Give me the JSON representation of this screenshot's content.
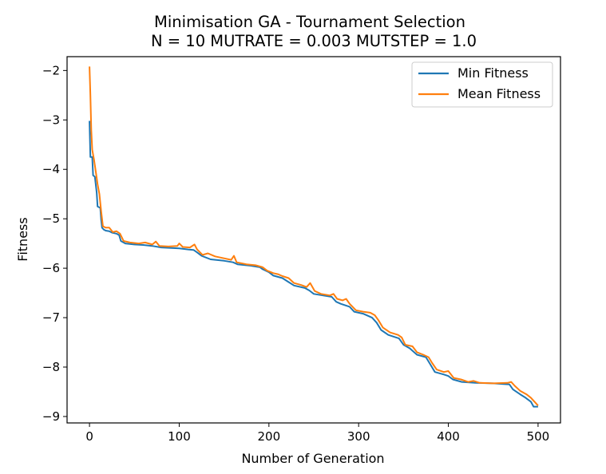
{
  "chart_data": {
    "type": "line",
    "title": "Minimisation GA - Tournament Selection",
    "subtitle": "N = 10 MUTRATE = 0.003 MUTSTEP = 1.0",
    "xlabel": "Number of Generation",
    "ylabel": "Fitness",
    "xlim": [
      -25,
      525
    ],
    "ylim": [
      -9.13,
      -1.72
    ],
    "xticks": [
      0,
      100,
      200,
      300,
      400,
      500
    ],
    "yticks": [
      -9,
      -8,
      -7,
      -6,
      -5,
      -4,
      -3,
      -2
    ],
    "legend": "top-right",
    "grid": false,
    "series": [
      {
        "name": "Min Fitness",
        "color": "#1f77b4",
        "points": [
          [
            0,
            -3.02
          ],
          [
            1,
            -3.75
          ],
          [
            3,
            -3.75
          ],
          [
            4,
            -4.12
          ],
          [
            6,
            -4.15
          ],
          [
            8,
            -4.47
          ],
          [
            9,
            -4.75
          ],
          [
            12,
            -4.78
          ],
          [
            13,
            -5.02
          ],
          [
            14,
            -5.18
          ],
          [
            16,
            -5.22
          ],
          [
            18,
            -5.24
          ],
          [
            22,
            -5.25
          ],
          [
            25,
            -5.28
          ],
          [
            30,
            -5.3
          ],
          [
            33,
            -5.33
          ],
          [
            35,
            -5.45
          ],
          [
            40,
            -5.5
          ],
          [
            50,
            -5.52
          ],
          [
            60,
            -5.53
          ],
          [
            70,
            -5.55
          ],
          [
            80,
            -5.58
          ],
          [
            100,
            -5.6
          ],
          [
            110,
            -5.62
          ],
          [
            116,
            -5.63
          ],
          [
            120,
            -5.68
          ],
          [
            125,
            -5.75
          ],
          [
            135,
            -5.82
          ],
          [
            150,
            -5.85
          ],
          [
            160,
            -5.88
          ],
          [
            165,
            -5.92
          ],
          [
            180,
            -5.95
          ],
          [
            190,
            -5.98
          ],
          [
            193,
            -6.02
          ],
          [
            200,
            -6.08
          ],
          [
            205,
            -6.15
          ],
          [
            215,
            -6.2
          ],
          [
            222,
            -6.28
          ],
          [
            228,
            -6.35
          ],
          [
            240,
            -6.4
          ],
          [
            245,
            -6.45
          ],
          [
            250,
            -6.52
          ],
          [
            260,
            -6.55
          ],
          [
            270,
            -6.58
          ],
          [
            275,
            -6.68
          ],
          [
            280,
            -6.72
          ],
          [
            290,
            -6.78
          ],
          [
            295,
            -6.88
          ],
          [
            305,
            -6.92
          ],
          [
            315,
            -7.0
          ],
          [
            320,
            -7.1
          ],
          [
            325,
            -7.25
          ],
          [
            333,
            -7.35
          ],
          [
            345,
            -7.42
          ],
          [
            350,
            -7.55
          ],
          [
            357,
            -7.62
          ],
          [
            365,
            -7.75
          ],
          [
            375,
            -7.8
          ],
          [
            380,
            -7.95
          ],
          [
            385,
            -8.1
          ],
          [
            395,
            -8.15
          ],
          [
            400,
            -8.18
          ],
          [
            405,
            -8.25
          ],
          [
            415,
            -8.3
          ],
          [
            430,
            -8.32
          ],
          [
            450,
            -8.33
          ],
          [
            468,
            -8.35
          ],
          [
            472,
            -8.45
          ],
          [
            480,
            -8.55
          ],
          [
            486,
            -8.62
          ],
          [
            492,
            -8.7
          ],
          [
            495,
            -8.8
          ],
          [
            500,
            -8.8
          ]
        ]
      },
      {
        "name": "Mean Fitness",
        "color": "#ff7f0e",
        "points": [
          [
            0,
            -1.92
          ],
          [
            1,
            -2.5
          ],
          [
            2,
            -3.2
          ],
          [
            3,
            -3.6
          ],
          [
            5,
            -3.8
          ],
          [
            7,
            -4.05
          ],
          [
            9,
            -4.3
          ],
          [
            11,
            -4.5
          ],
          [
            13,
            -4.85
          ],
          [
            15,
            -5.15
          ],
          [
            18,
            -5.18
          ],
          [
            22,
            -5.18
          ],
          [
            26,
            -5.27
          ],
          [
            30,
            -5.25
          ],
          [
            34,
            -5.3
          ],
          [
            38,
            -5.45
          ],
          [
            45,
            -5.48
          ],
          [
            55,
            -5.5
          ],
          [
            62,
            -5.48
          ],
          [
            70,
            -5.52
          ],
          [
            74,
            -5.46
          ],
          [
            78,
            -5.55
          ],
          [
            88,
            -5.56
          ],
          [
            98,
            -5.55
          ],
          [
            100,
            -5.5
          ],
          [
            104,
            -5.57
          ],
          [
            112,
            -5.58
          ],
          [
            117,
            -5.52
          ],
          [
            120,
            -5.62
          ],
          [
            126,
            -5.73
          ],
          [
            132,
            -5.7
          ],
          [
            140,
            -5.76
          ],
          [
            150,
            -5.8
          ],
          [
            158,
            -5.83
          ],
          [
            161,
            -5.75
          ],
          [
            164,
            -5.88
          ],
          [
            175,
            -5.92
          ],
          [
            185,
            -5.94
          ],
          [
            193,
            -5.98
          ],
          [
            198,
            -6.05
          ],
          [
            205,
            -6.1
          ],
          [
            210,
            -6.12
          ],
          [
            215,
            -6.16
          ],
          [
            222,
            -6.2
          ],
          [
            228,
            -6.3
          ],
          [
            236,
            -6.34
          ],
          [
            242,
            -6.38
          ],
          [
            246,
            -6.3
          ],
          [
            251,
            -6.46
          ],
          [
            258,
            -6.52
          ],
          [
            268,
            -6.55
          ],
          [
            272,
            -6.52
          ],
          [
            276,
            -6.62
          ],
          [
            282,
            -6.65
          ],
          [
            286,
            -6.62
          ],
          [
            290,
            -6.72
          ],
          [
            297,
            -6.85
          ],
          [
            305,
            -6.88
          ],
          [
            313,
            -6.9
          ],
          [
            318,
            -6.95
          ],
          [
            322,
            -7.05
          ],
          [
            327,
            -7.2
          ],
          [
            335,
            -7.3
          ],
          [
            344,
            -7.35
          ],
          [
            348,
            -7.4
          ],
          [
            352,
            -7.55
          ],
          [
            360,
            -7.58
          ],
          [
            365,
            -7.7
          ],
          [
            372,
            -7.75
          ],
          [
            378,
            -7.8
          ],
          [
            382,
            -7.92
          ],
          [
            387,
            -8.05
          ],
          [
            395,
            -8.1
          ],
          [
            400,
            -8.08
          ],
          [
            406,
            -8.22
          ],
          [
            414,
            -8.25
          ],
          [
            422,
            -8.3
          ],
          [
            428,
            -8.28
          ],
          [
            435,
            -8.32
          ],
          [
            450,
            -8.33
          ],
          [
            466,
            -8.32
          ],
          [
            470,
            -8.3
          ],
          [
            474,
            -8.38
          ],
          [
            480,
            -8.48
          ],
          [
            487,
            -8.55
          ],
          [
            492,
            -8.62
          ],
          [
            497,
            -8.72
          ],
          [
            500,
            -8.78
          ]
        ]
      }
    ]
  }
}
